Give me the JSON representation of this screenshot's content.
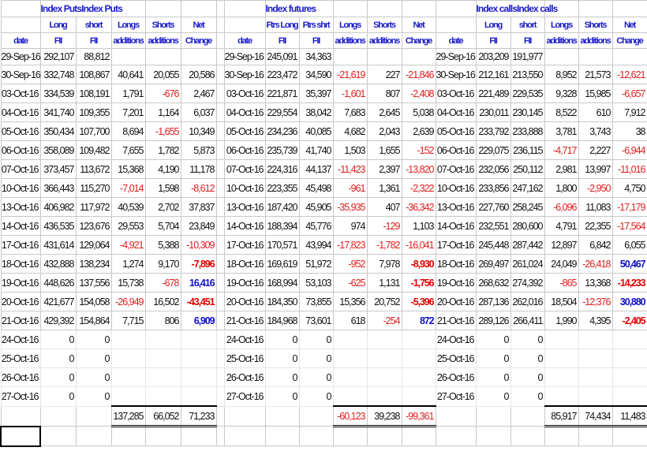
{
  "sections": [
    {
      "title": "Index PutsIndex Puts",
      "header_row1": [
        "",
        "Long",
        "short",
        "Longs",
        "Shorts",
        "Net"
      ],
      "header_row2": [
        "date",
        "FII",
        "FII",
        "additions",
        "additions",
        "Change"
      ],
      "rows": [
        [
          "29-Sep-16",
          "292,107",
          "88,812",
          "",
          "",
          ""
        ],
        [
          "30-Sep-16",
          "332,748",
          "108,867",
          "40,641",
          "20,055",
          "20,586"
        ],
        [
          "03-Oct-16",
          "334,539",
          "108,191",
          "1,791",
          "-676",
          "2,467"
        ],
        [
          "04-Oct-16",
          "341,740",
          "109,355",
          "7,201",
          "1,164",
          "6,037"
        ],
        [
          "05-Oct-16",
          "350,434",
          "107,700",
          "8,694",
          "-1,655",
          "10,349"
        ],
        [
          "06-Oct-16",
          "358,089",
          "109,482",
          "7,655",
          "1,782",
          "5,873"
        ],
        [
          "07-Oct-16",
          "373,457",
          "113,672",
          "15,368",
          "4,190",
          "11,178"
        ],
        [
          "10-Oct-16",
          "366,443",
          "115,270",
          "-7,014",
          "1,598",
          "-8,612"
        ],
        [
          "13-Oct-16",
          "406,982",
          "117,972",
          "40,539",
          "2,702",
          "37,837"
        ],
        [
          "14-Oct-16",
          "436,535",
          "123,676",
          "29,553",
          "5,704",
          "23,849"
        ],
        [
          "17-Oct-16",
          "431,614",
          "129,064",
          "-4,921",
          "5,388",
          "-10,309"
        ],
        [
          "18-Oct-16",
          "432,888",
          "138,234",
          "1,274",
          "9,170",
          "-7,896"
        ],
        [
          "19-Oct-16",
          "448,626",
          "137,556",
          "15,738",
          "-678",
          "16,416"
        ],
        [
          "20-Oct-16",
          "421,677",
          "154,058",
          "-26,949",
          "16,502",
          "-43,451"
        ],
        [
          "21-Oct-16",
          "429,392",
          "154,864",
          "7,715",
          "806",
          "6,909"
        ],
        [
          "24-Oct-16",
          "0",
          "0",
          "",
          "",
          ""
        ],
        [
          "25-Oct-16",
          "0",
          "0",
          "",
          "",
          ""
        ],
        [
          "26-Oct-16",
          "0",
          "0",
          "",
          "",
          ""
        ],
        [
          "27-Oct-16",
          "0",
          "0",
          "",
          "",
          ""
        ]
      ],
      "totals": [
        "137,285",
        "66,052",
        "71,233"
      ]
    },
    {
      "title": "Index futures",
      "header_row1": [
        "",
        "Ftrs Long",
        "Ftrs shrt",
        "Longs",
        "Shorts",
        "Net"
      ],
      "header_row2": [
        "date",
        "FII",
        "FII",
        "additions",
        "additions",
        "Change"
      ],
      "rows": [
        [
          "29-Sep-16",
          "245,091",
          "34,363",
          "",
          "",
          ""
        ],
        [
          "30-Sep-16",
          "223,472",
          "34,590",
          "-21,619",
          "227",
          "-21,846"
        ],
        [
          "03-Oct-16",
          "221,871",
          "35,397",
          "-1,601",
          "807",
          "-2,408"
        ],
        [
          "04-Oct-16",
          "229,554",
          "38,042",
          "7,683",
          "2,645",
          "5,038"
        ],
        [
          "05-Oct-16",
          "234,236",
          "40,085",
          "4,682",
          "2,043",
          "2,639"
        ],
        [
          "06-Oct-16",
          "235,739",
          "41,740",
          "1,503",
          "1,655",
          "-152"
        ],
        [
          "07-Oct-16",
          "224,316",
          "44,137",
          "-11,423",
          "2,397",
          "-13,820"
        ],
        [
          "10-Oct-16",
          "223,355",
          "45,498",
          "-961",
          "1,361",
          "-2,322"
        ],
        [
          "13-Oct-16",
          "187,420",
          "45,905",
          "-35,935",
          "407",
          "-36,342"
        ],
        [
          "14-Oct-16",
          "188,394",
          "45,776",
          "974",
          "-129",
          "1,103"
        ],
        [
          "17-Oct-16",
          "170,571",
          "43,994",
          "-17,823",
          "-1,782",
          "-16,041"
        ],
        [
          "18-Oct-16",
          "169,619",
          "51,972",
          "-952",
          "7,978",
          "-8,930"
        ],
        [
          "19-Oct-16",
          "168,994",
          "53,103",
          "-625",
          "1,131",
          "-1,756"
        ],
        [
          "20-Oct-16",
          "184,350",
          "73,855",
          "15,356",
          "20,752",
          "-5,396"
        ],
        [
          "21-Oct-16",
          "184,968",
          "73,601",
          "618",
          "-254",
          "872"
        ],
        [
          "24-Oct-16",
          "0",
          "0",
          "",
          "",
          ""
        ],
        [
          "25-Oct-16",
          "0",
          "0",
          "",
          "",
          ""
        ],
        [
          "26-Oct-16",
          "0",
          "0",
          "",
          "",
          ""
        ],
        [
          "27-Oct-16",
          "0",
          "0",
          "",
          "",
          ""
        ]
      ],
      "totals": [
        "-60,123",
        "39,238",
        "-99,361"
      ]
    },
    {
      "title": "Index callsIndex calls",
      "header_row1": [
        "",
        "Long",
        "short",
        "Longs",
        "Shorts",
        "Net"
      ],
      "header_row2": [
        "date",
        "FII",
        "FII",
        "additions",
        "additions",
        "Change"
      ],
      "rows": [
        [
          "29-Sep-16",
          "203,209",
          "191,977",
          "",
          "",
          ""
        ],
        [
          "30-Sep-16",
          "212,161",
          "213,550",
          "8,952",
          "21,573",
          "-12,621"
        ],
        [
          "03-Oct-16",
          "221,489",
          "229,535",
          "9,328",
          "15,985",
          "-6,657"
        ],
        [
          "04-Oct-16",
          "230,011",
          "230,145",
          "8,522",
          "610",
          "7,912"
        ],
        [
          "05-Oct-16",
          "233,792",
          "233,888",
          "3,781",
          "3,743",
          "38"
        ],
        [
          "06-Oct-16",
          "229,075",
          "236,115",
          "-4,717",
          "2,227",
          "-6,944"
        ],
        [
          "07-Oct-16",
          "232,056",
          "250,112",
          "2,981",
          "13,997",
          "-11,016"
        ],
        [
          "10-Oct-16",
          "233,856",
          "247,162",
          "1,800",
          "-2,950",
          "4,750"
        ],
        [
          "13-Oct-16",
          "227,760",
          "258,245",
          "-6,096",
          "11,083",
          "-17,179"
        ],
        [
          "14-Oct-16",
          "232,551",
          "280,600",
          "4,791",
          "22,355",
          "-17,564"
        ],
        [
          "17-Oct-16",
          "245,448",
          "287,442",
          "12,897",
          "6,842",
          "6,055"
        ],
        [
          "18-Oct-16",
          "269,497",
          "261,024",
          "24,049",
          "-26,418",
          "50,467"
        ],
        [
          "19-Oct-16",
          "268,632",
          "274,392",
          "-865",
          "13,368",
          "-14,233"
        ],
        [
          "20-Oct-16",
          "287,136",
          "262,016",
          "18,504",
          "-12,376",
          "30,880"
        ],
        [
          "21-Oct-16",
          "289,126",
          "266,411",
          "1,990",
          "4,395",
          "-2,405"
        ],
        [
          "24-Oct-16",
          "0",
          "0",
          "",
          "",
          ""
        ],
        [
          "25-Oct-16",
          "0",
          "0",
          "",
          "",
          ""
        ],
        [
          "26-Oct-16",
          "0",
          "0",
          "",
          "",
          ""
        ],
        [
          "27-Oct-16",
          "0",
          "0",
          "",
          "",
          ""
        ]
      ],
      "totals": [
        "85,917",
        "74,434",
        "11,483"
      ]
    }
  ],
  "emphasized_net_dates": [
    "18-Oct-16",
    "19-Oct-16",
    "20-Oct-16",
    "21-Oct-16"
  ],
  "colors": {
    "header": "#1a1ac8",
    "negative": "#e01e1e",
    "emphasis_positive": "#1010c8",
    "emphasis_negative": "#e00000",
    "grid": "#c8c8c8"
  }
}
